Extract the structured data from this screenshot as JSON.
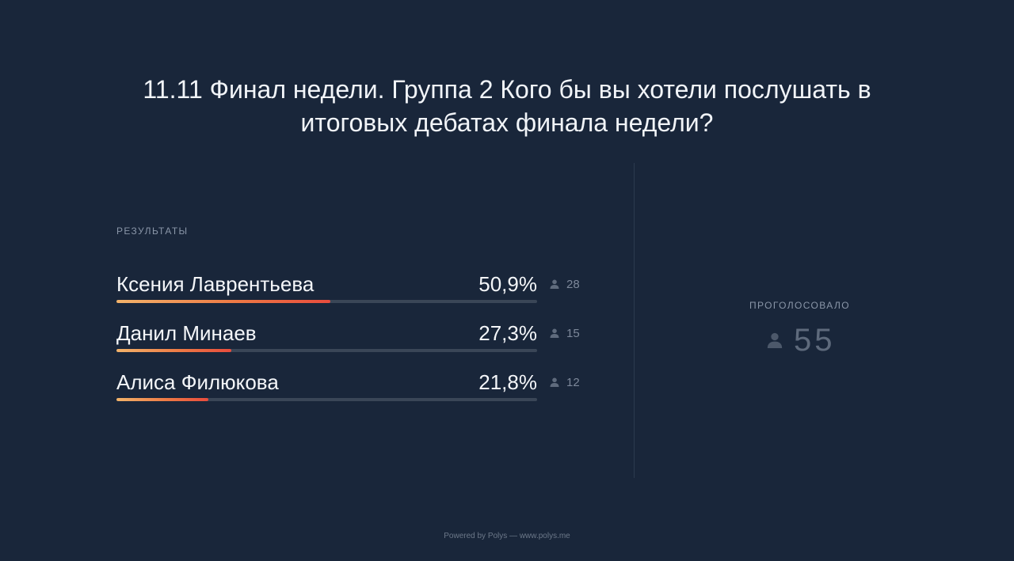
{
  "question": "11.11 Финал недели. Группа 2 Кого бы вы хотели послушать в итоговых дебатах финала недели?",
  "results_label": "РЕЗУЛЬТАТЫ",
  "options": [
    {
      "name": "Ксения Лаврентьева",
      "percent": "50,9%",
      "votes": "28",
      "fraction": 0.509
    },
    {
      "name": "Данил Минаев",
      "percent": "27,3%",
      "votes": "15",
      "fraction": 0.273
    },
    {
      "name": "Алиса Филюкова",
      "percent": "21,8%",
      "votes": "12",
      "fraction": 0.218
    }
  ],
  "voted_label": "ПРОГОЛОСОВАЛО",
  "voted_count": "55",
  "footer": "Powered by Polys — www.polys.me",
  "colors": {
    "background": "#19263a",
    "bar_track": "#3a4657",
    "bar_gradient_start": "#f2b36a",
    "bar_gradient_end": "#e84c3d"
  },
  "icons": {
    "voter": "user-icon"
  }
}
